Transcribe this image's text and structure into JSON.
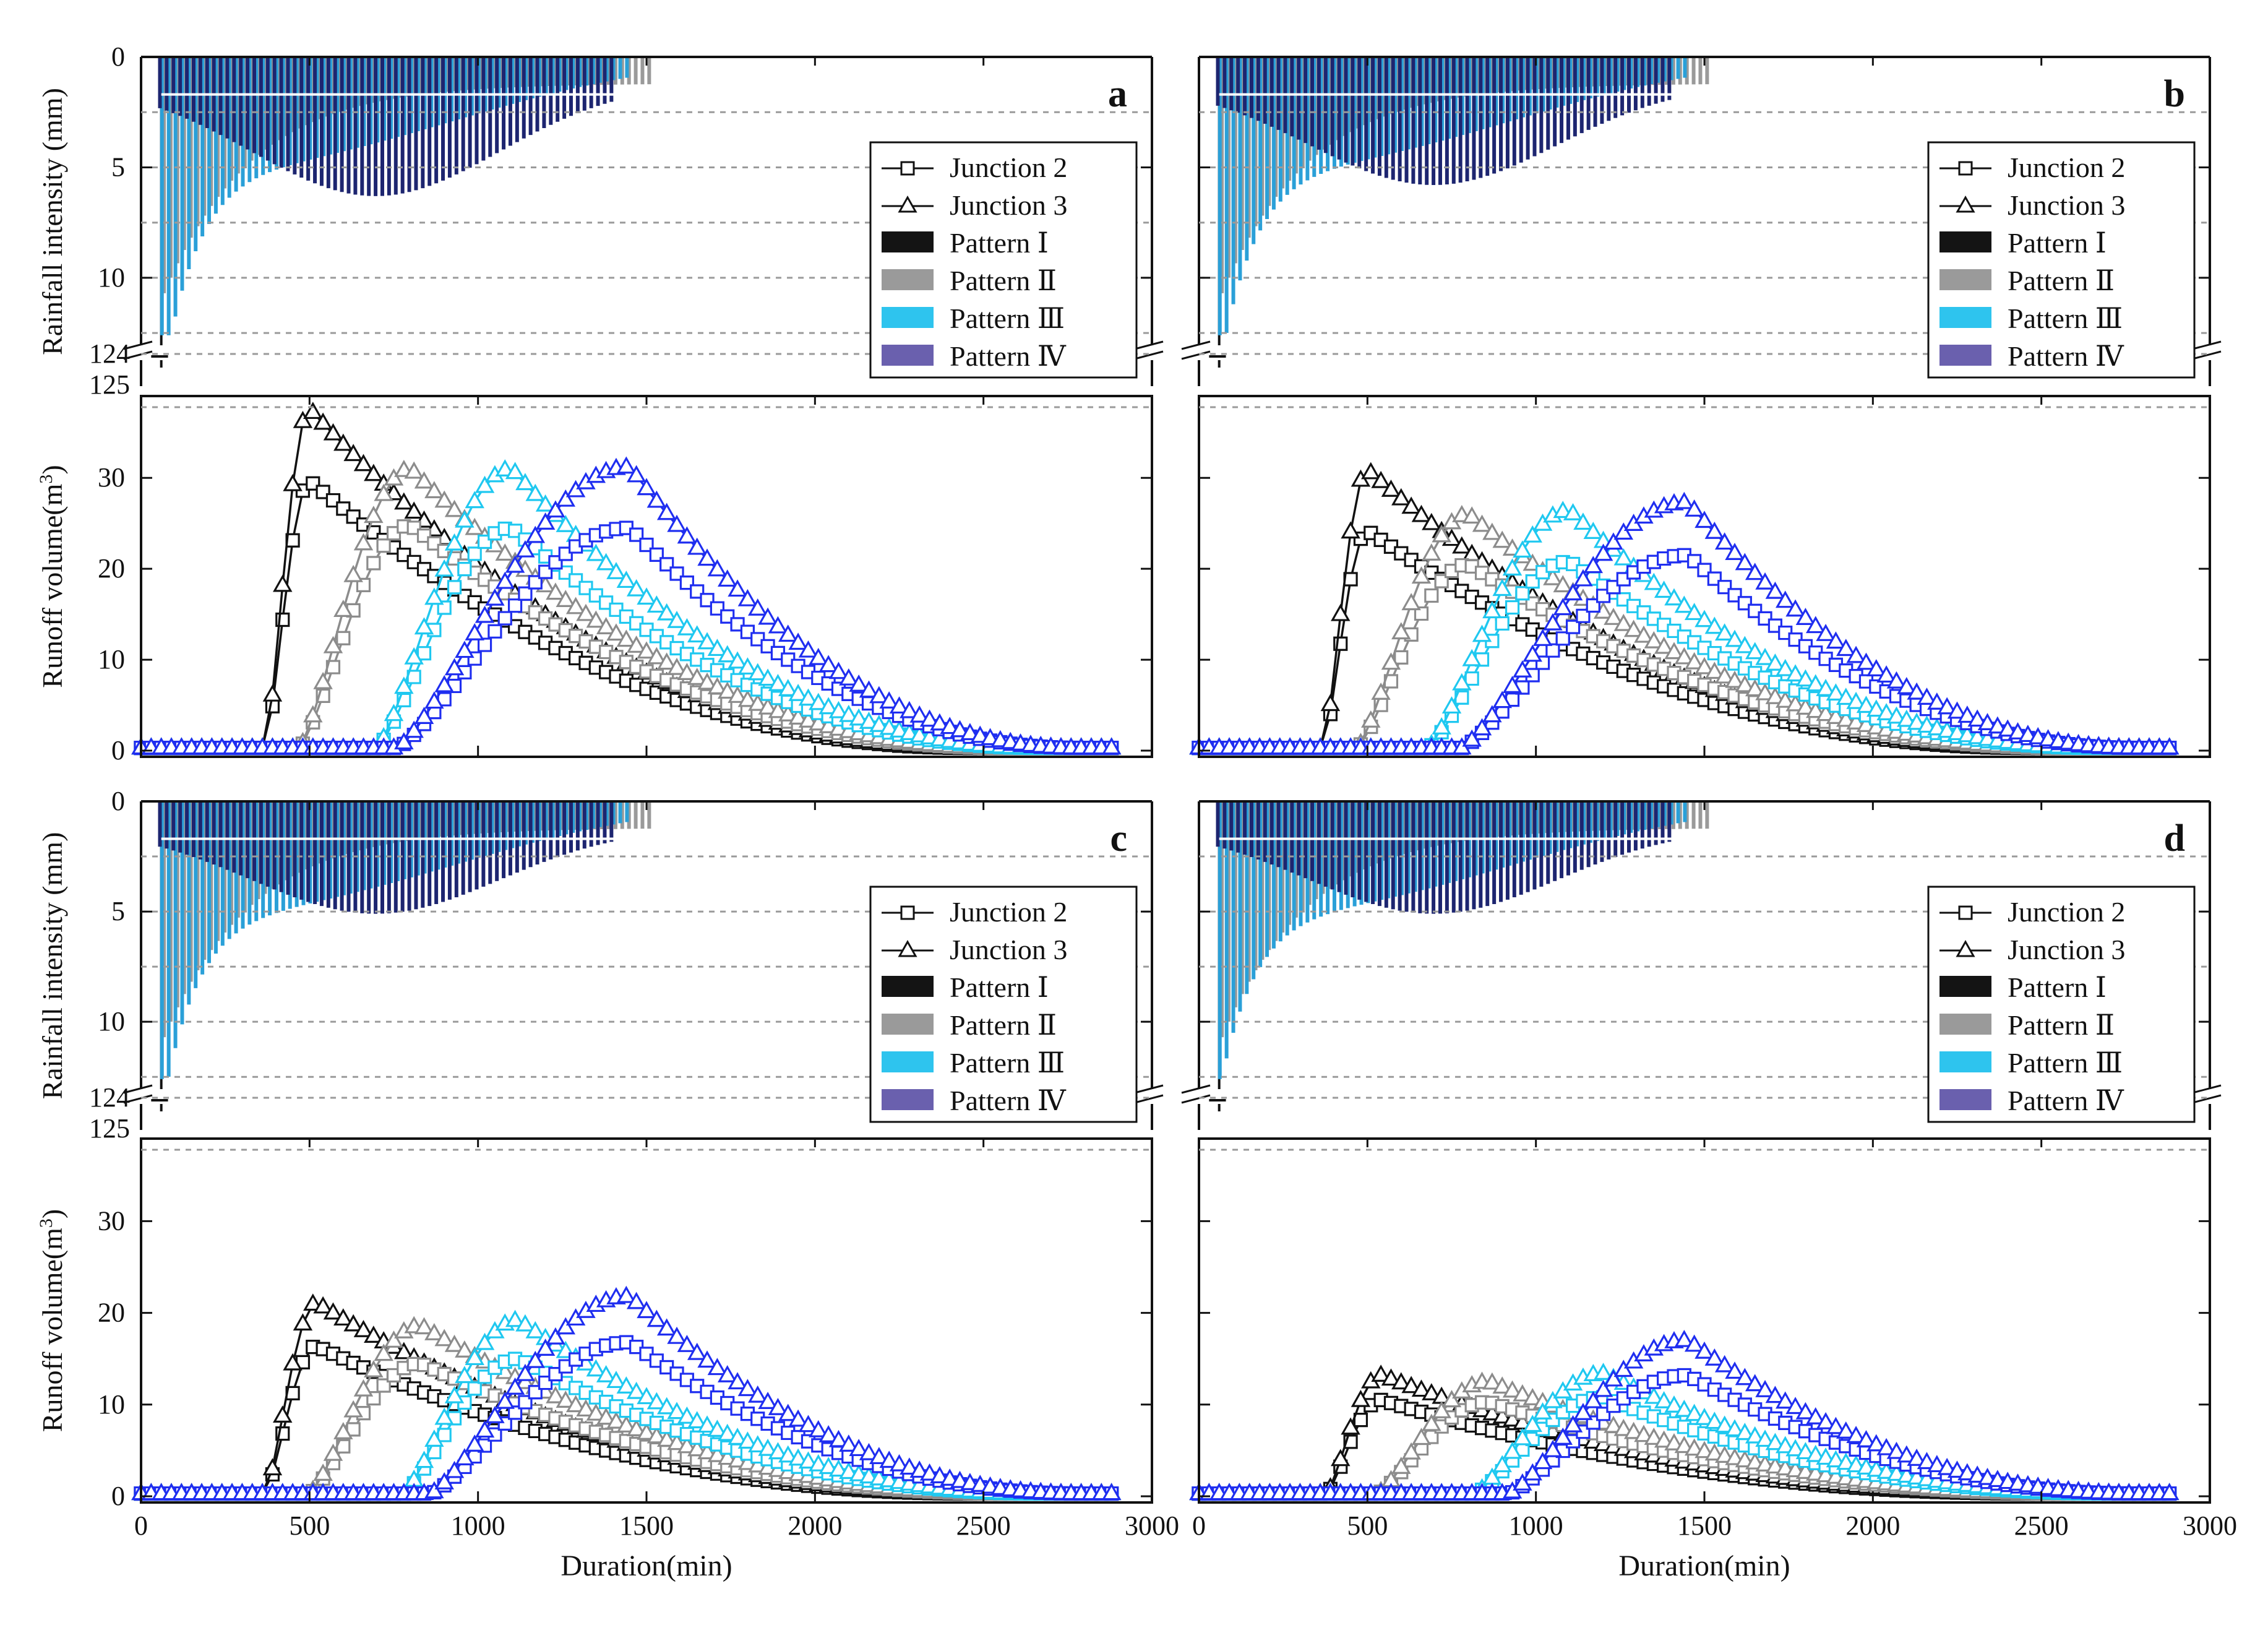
{
  "chart_data": {
    "type": "line",
    "x_label": "Duration(min)",
    "rain_label": "Rainfall intensity (mm)",
    "runoff_label": "Runoff volume(m",
    "runoff_label_sup": "3",
    "runoff_label_end": ")",
    "x_ticks": [
      "0",
      "500",
      "1000",
      "1500",
      "2000",
      "2500",
      "3000"
    ],
    "rain_ticks": [
      "0",
      "5",
      "10",
      "124",
      "125"
    ],
    "runoff_ticks": [
      "0",
      "10",
      "20",
      "30"
    ],
    "rain_top_range": [
      0,
      13
    ],
    "rain_top_ticks": [
      0,
      5,
      10
    ],
    "rain_gridlines": [
      2.5,
      5,
      7.5,
      10,
      12.5
    ],
    "rain_break": [
      124,
      125
    ],
    "runoff_range": [
      0,
      39
    ],
    "xlim": [
      0,
      3000
    ],
    "legend": [
      {
        "label": "Junction 2",
        "kind": "line-square"
      },
      {
        "label": "Junction 3",
        "kind": "line-triangle"
      },
      {
        "label": "Pattern Ⅰ",
        "kind": "patch",
        "color": "#141414"
      },
      {
        "label": "Pattern Ⅱ",
        "kind": "patch",
        "color": "#9a9a9a"
      },
      {
        "label": "Pattern Ⅲ",
        "kind": "patch",
        "color": "#2ec4ee"
      },
      {
        "label": "Pattern Ⅳ",
        "kind": "patch",
        "color": "#6a60ae"
      }
    ],
    "colors": {
      "pattern1": "#111111",
      "pattern2": "#8c8c8c",
      "pattern3": "#1fc8f0",
      "pattern4": "#1f2ef0",
      "rain_dark": "#1d2570",
      "rain_light": "#2aa0d8",
      "rain_gray": "#9a9a9a",
      "grid": "#9a9a9a"
    },
    "panels": [
      {
        "label": "a",
        "rain_peaks": {
          "pattern1": 124.5,
          "pattern2": 124.5,
          "pattern3": 11.3,
          "pattern4": 6.3
        },
        "runoff_peaks": {
          "pattern1": {
            "start": 370,
            "peak_t": 500,
            "j2": 29.7,
            "j3": 37.6
          },
          "pattern2": {
            "start": 470,
            "peak_t": 800,
            "j2": 24.8,
            "j3": 31.0
          },
          "pattern3": {
            "start": 700,
            "peak_t": 1100,
            "j2": 24.5,
            "j3": 31.0
          },
          "pattern4": {
            "start": 760,
            "peak_t": 1450,
            "j2": 24.5,
            "j3": 31.2
          }
        }
      },
      {
        "label": "b",
        "rain_peaks": {
          "pattern1": 124.5,
          "pattern2": 124.5,
          "pattern3": 10.5,
          "pattern4": 5.8
        },
        "runoff_peaks": {
          "pattern1": {
            "start": 370,
            "peak_t": 500,
            "j2": 24.2,
            "j3": 30.9
          },
          "pattern2": {
            "start": 470,
            "peak_t": 800,
            "j2": 20.5,
            "j3": 26.0
          },
          "pattern3": {
            "start": 680,
            "peak_t": 1100,
            "j2": 20.8,
            "j3": 26.4
          },
          "pattern4": {
            "start": 780,
            "peak_t": 1450,
            "j2": 21.5,
            "j3": 27.3
          }
        }
      },
      {
        "label": "c",
        "rain_peaks": {
          "pattern1": 124.5,
          "pattern2": 124.5,
          "pattern3": 10.5,
          "pattern4": 5.1
        },
        "runoff_peaks": {
          "pattern1": {
            "start": 370,
            "peak_t": 520,
            "j2": 16.4,
            "j3": 21.1
          },
          "pattern2": {
            "start": 500,
            "peak_t": 830,
            "j2": 14.5,
            "j3": 18.6
          },
          "pattern3": {
            "start": 780,
            "peak_t": 1120,
            "j2": 15.0,
            "j3": 19.2
          },
          "pattern4": {
            "start": 860,
            "peak_t": 1450,
            "j2": 16.8,
            "j3": 21.8
          }
        }
      },
      {
        "label": "d",
        "rain_peaks": {
          "pattern1": 124.5,
          "pattern2": 124.5,
          "pattern3": 9.5,
          "pattern4": 5.1
        },
        "runoff_peaks": {
          "pattern1": {
            "start": 380,
            "peak_t": 540,
            "j2": 10.5,
            "j3": 13.2
          },
          "pattern2": {
            "start": 530,
            "peak_t": 860,
            "j2": 10.3,
            "j3": 12.5
          },
          "pattern3": {
            "start": 820,
            "peak_t": 1200,
            "j2": 10.8,
            "j3": 13.4
          },
          "pattern4": {
            "start": 920,
            "peak_t": 1450,
            "j2": 13.2,
            "j3": 17.0
          }
        }
      }
    ]
  }
}
